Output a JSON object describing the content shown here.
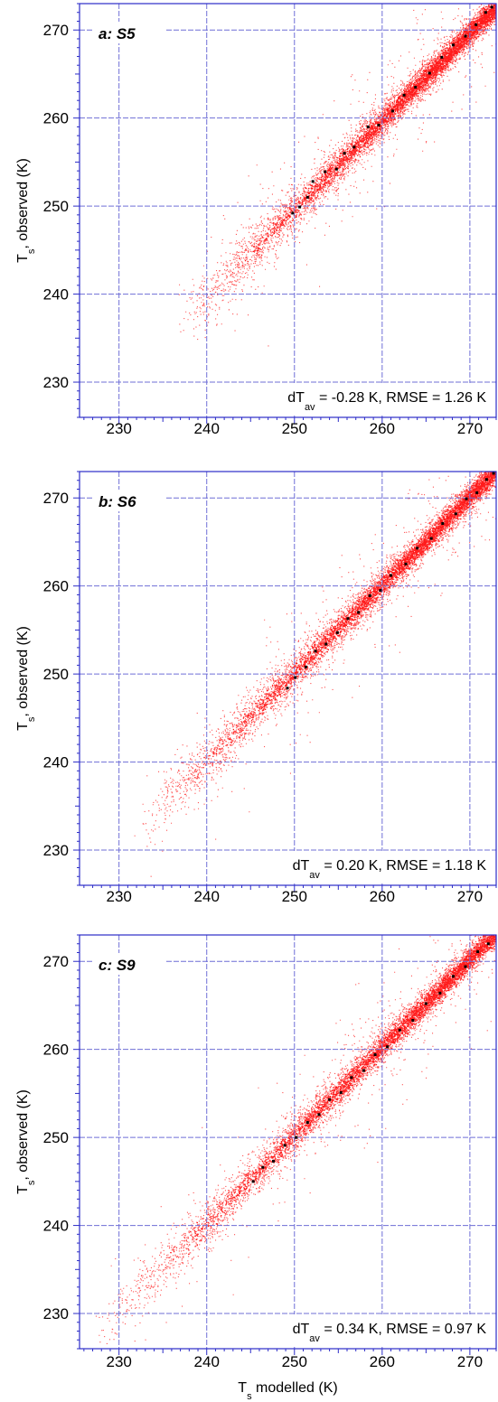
{
  "colors": {
    "frame": "#2b2bc8",
    "grid": "#6f6fd6",
    "points": "#ff1a1a",
    "highlight_points": "#000000",
    "text": "#000000"
  },
  "chart_data": [
    {
      "type": "scatter",
      "title": "a: S5",
      "xlabel": "",
      "ylabel": "T",
      "ylabel_subscript": "s",
      "ylabel_suffix": ", observed (K)",
      "xlim": [
        225.5,
        273.0
      ],
      "ylim": [
        226.0,
        273.0
      ],
      "xticks": [
        230,
        240,
        250,
        260,
        270
      ],
      "yticks": [
        230,
        240,
        250,
        260,
        270
      ],
      "grid": true,
      "annotation": {
        "prefix": "dT",
        "subscript": "av",
        "suffix": " = -0.28 K, RMSE = 1.26 K"
      },
      "dT_av": -0.28,
      "RMSE": 1.26,
      "point_range": [
        236.5,
        273.0
      ],
      "highlight_points": [
        [
          249.8,
          249.2
        ],
        [
          250.6,
          249.9
        ],
        [
          251.5,
          251.0
        ],
        [
          252.1,
          252.8
        ],
        [
          253.5,
          253.9
        ],
        [
          254.8,
          254.2
        ],
        [
          255.7,
          256.0
        ],
        [
          256.8,
          256.7
        ],
        [
          258.4,
          259.0
        ],
        [
          259.6,
          259.2
        ],
        [
          261.2,
          260.8
        ],
        [
          262.5,
          262.6
        ],
        [
          263.8,
          263.5
        ],
        [
          265.4,
          265.1
        ],
        [
          266.8,
          266.9
        ],
        [
          268.1,
          268.3
        ],
        [
          269.5,
          269.3
        ],
        [
          270.7,
          270.6
        ],
        [
          271.8,
          272.0
        ],
        [
          272.5,
          272.6
        ]
      ]
    },
    {
      "type": "scatter",
      "title": "b: S6",
      "xlabel": "",
      "ylabel": "T",
      "ylabel_subscript": "s",
      "ylabel_suffix": ", observed (K)",
      "xlim": [
        225.5,
        273.0
      ],
      "ylim": [
        226.0,
        273.0
      ],
      "xticks": [
        230,
        240,
        250,
        260,
        270
      ],
      "yticks": [
        230,
        240,
        250,
        260,
        270
      ],
      "grid": true,
      "annotation": {
        "prefix": "dT",
        "subscript": "av",
        "suffix": " = 0.20 K, RMSE = 1.18 K"
      },
      "dT_av": 0.2,
      "RMSE": 1.18,
      "point_range": [
        232.0,
        273.0
      ],
      "highlight_points": [
        [
          249.2,
          248.4
        ],
        [
          250.1,
          249.6
        ],
        [
          251.3,
          250.8
        ],
        [
          252.4,
          252.6
        ],
        [
          253.6,
          253.4
        ],
        [
          254.9,
          254.7
        ],
        [
          256.1,
          256.3
        ],
        [
          257.3,
          257.0
        ],
        [
          258.6,
          258.9
        ],
        [
          259.8,
          259.5
        ],
        [
          261.0,
          261.2
        ],
        [
          262.7,
          262.5
        ],
        [
          264.0,
          264.3
        ],
        [
          265.6,
          265.4
        ],
        [
          266.9,
          267.1
        ],
        [
          268.4,
          268.2
        ],
        [
          269.6,
          269.9
        ],
        [
          270.8,
          270.6
        ],
        [
          271.9,
          272.1
        ],
        [
          272.7,
          272.8
        ]
      ]
    },
    {
      "type": "scatter",
      "title": "c: S9",
      "xlabel": "T",
      "xlabel_subscript": "s",
      "xlabel_suffix": " modelled (K)",
      "ylabel": "T",
      "ylabel_subscript": "s",
      "ylabel_suffix": ", observed (K)",
      "xlim": [
        225.5,
        273.0
      ],
      "ylim": [
        226.0,
        273.0
      ],
      "xticks": [
        230,
        240,
        250,
        260,
        270
      ],
      "yticks": [
        230,
        240,
        250,
        260,
        270
      ],
      "grid": true,
      "annotation": {
        "prefix": "dT",
        "subscript": "av",
        "suffix": " = 0.34 K, RMSE = 0.97 K"
      },
      "dT_av": 0.34,
      "RMSE": 0.97,
      "point_range": [
        227.0,
        273.0
      ],
      "highlight_points": [
        [
          245.3,
          245.0
        ],
        [
          246.4,
          246.6
        ],
        [
          247.6,
          247.3
        ],
        [
          248.9,
          249.1
        ],
        [
          250.2,
          250.0
        ],
        [
          251.5,
          251.7
        ],
        [
          252.8,
          252.6
        ],
        [
          254.0,
          254.3
        ],
        [
          255.3,
          255.1
        ],
        [
          256.5,
          256.8
        ],
        [
          257.9,
          257.6
        ],
        [
          259.2,
          259.4
        ],
        [
          260.6,
          260.3
        ],
        [
          262.0,
          262.2
        ],
        [
          263.5,
          263.3
        ],
        [
          265.0,
          265.2
        ],
        [
          266.6,
          266.4
        ],
        [
          268.1,
          268.3
        ],
        [
          269.5,
          269.4
        ],
        [
          270.9,
          271.1
        ],
        [
          272.1,
          272.0
        ]
      ]
    }
  ]
}
